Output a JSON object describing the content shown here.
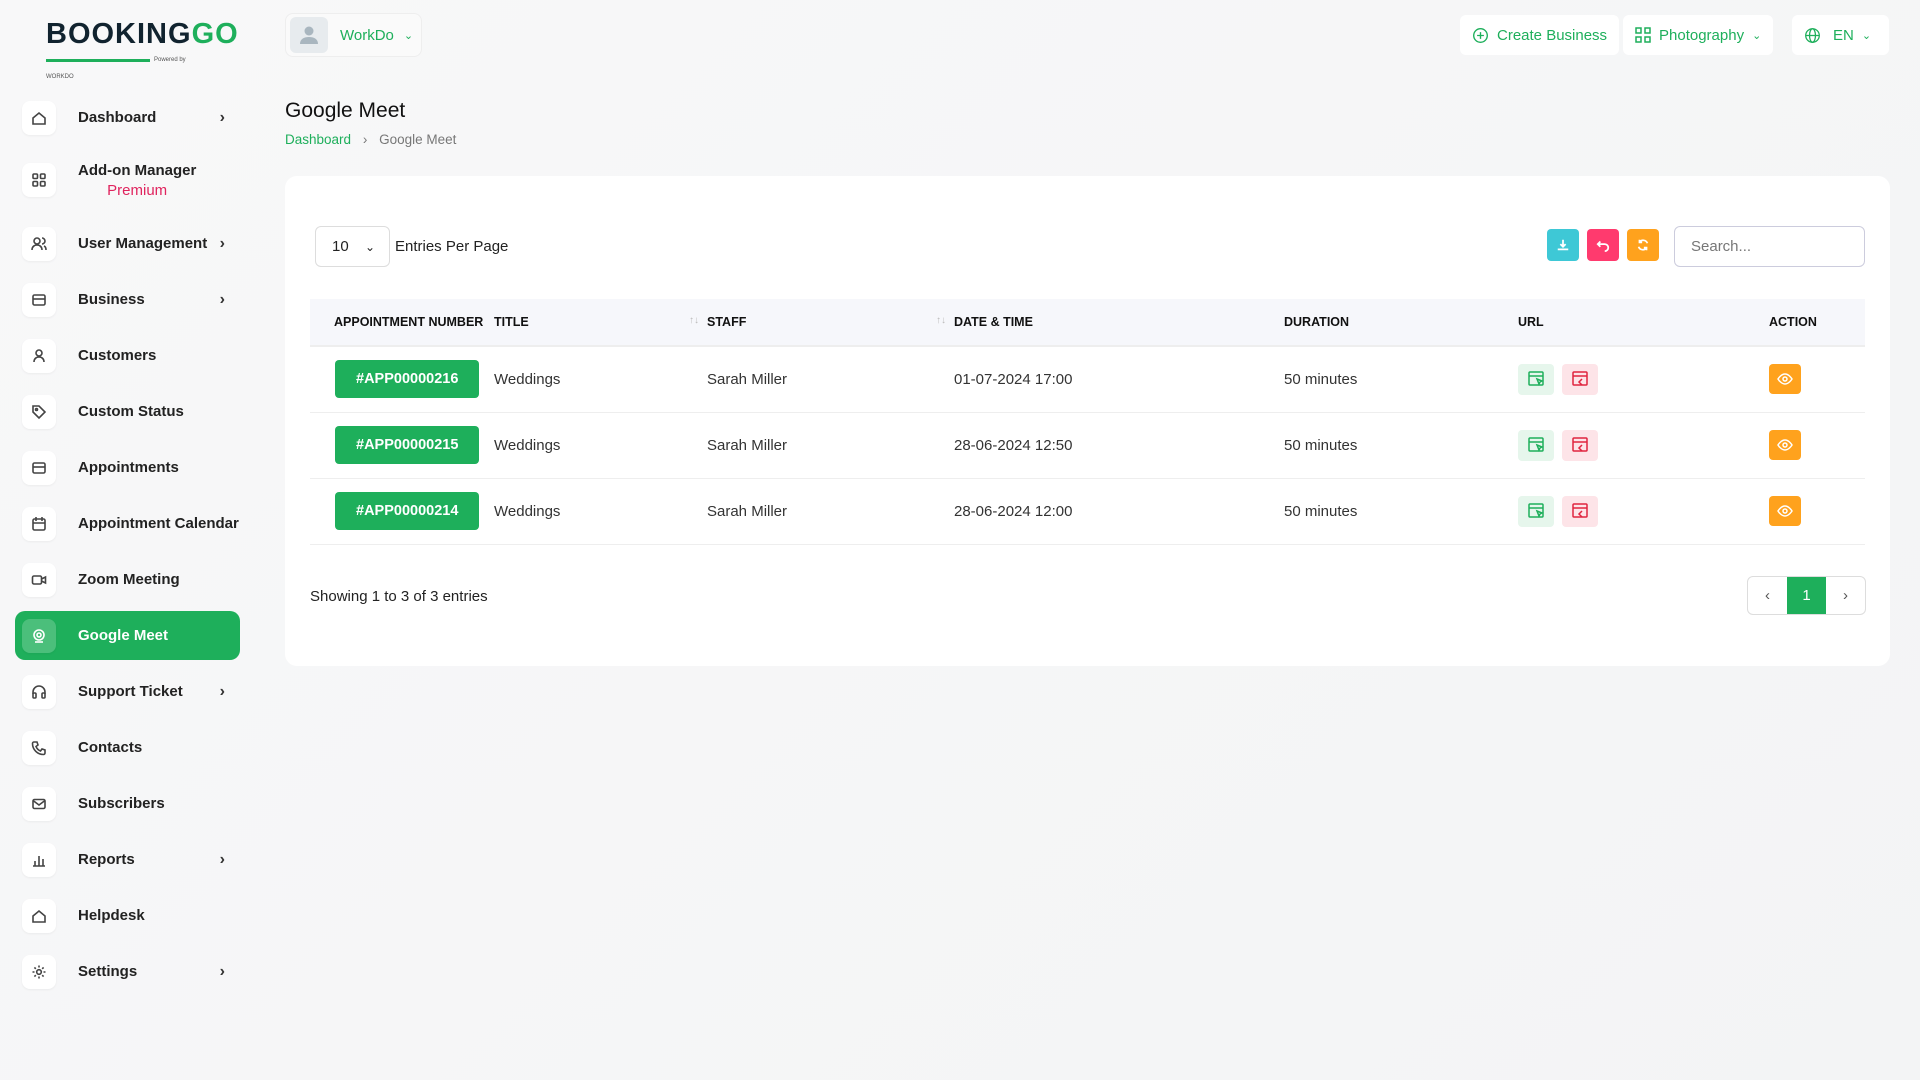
{
  "brand": {
    "logo_text": "BOOKINGGO",
    "powered": "Powered by WORKDO"
  },
  "topbar": {
    "workspace": "WorkDo",
    "create_business": "Create Business",
    "business_type": "Photography",
    "language": "EN"
  },
  "sidebar": {
    "items": [
      {
        "label": "Dashboard",
        "icon": "home-icon",
        "chevron": true
      },
      {
        "label": "Add-on Manager",
        "sub": "Premium",
        "icon": "grid-icon"
      },
      {
        "label": "User Management",
        "icon": "users-icon",
        "chevron": true
      },
      {
        "label": "Business",
        "icon": "card-icon",
        "chevron": true
      },
      {
        "label": "Customers",
        "icon": "user-icon"
      },
      {
        "label": "Custom Status",
        "icon": "tag-icon"
      },
      {
        "label": "Appointments",
        "icon": "card-icon"
      },
      {
        "label": "Appointment Calendar",
        "icon": "calendar-icon"
      },
      {
        "label": "Zoom Meeting",
        "icon": "video-icon"
      },
      {
        "label": "Google Meet",
        "icon": "webcam-icon",
        "active": true
      },
      {
        "label": "Support Ticket",
        "icon": "headset-icon",
        "chevron": true
      },
      {
        "label": "Contacts",
        "icon": "phone-icon"
      },
      {
        "label": "Subscribers",
        "icon": "mail-icon"
      },
      {
        "label": "Reports",
        "icon": "chart-icon",
        "chevron": true
      },
      {
        "label": "Helpdesk",
        "icon": "home-icon"
      },
      {
        "label": "Settings",
        "icon": "gear-icon",
        "chevron": true
      }
    ]
  },
  "page": {
    "title": "Google Meet",
    "breadcrumb": [
      "Dashboard",
      "Google Meet"
    ]
  },
  "table_controls": {
    "entries_value": "10",
    "entries_label": "Entries Per Page",
    "search_placeholder": "Search...",
    "colors": {
      "export": "#3ec8d6",
      "reset": "#ff3a6e",
      "refresh": "#ffa21d"
    }
  },
  "table": {
    "columns": [
      "APPOINTMENT NUMBER",
      "TITLE",
      "STAFF",
      "DATE & TIME",
      "DURATION",
      "URL",
      "ACTION"
    ],
    "rows": [
      {
        "number": "#APP00000216",
        "title": "Weddings",
        "staff": "Sarah Miller",
        "datetime": "01-07-2024 17:00",
        "duration": "50 minutes"
      },
      {
        "number": "#APP00000215",
        "title": "Weddings",
        "staff": "Sarah Miller",
        "datetime": "28-06-2024 12:50",
        "duration": "50 minutes"
      },
      {
        "number": "#APP00000214",
        "title": "Weddings",
        "staff": "Sarah Miller",
        "datetime": "28-06-2024 12:00",
        "duration": "50 minutes"
      }
    ]
  },
  "footer": {
    "showing": "Showing 1 to 3 of 3 entries",
    "current_page": "1"
  }
}
